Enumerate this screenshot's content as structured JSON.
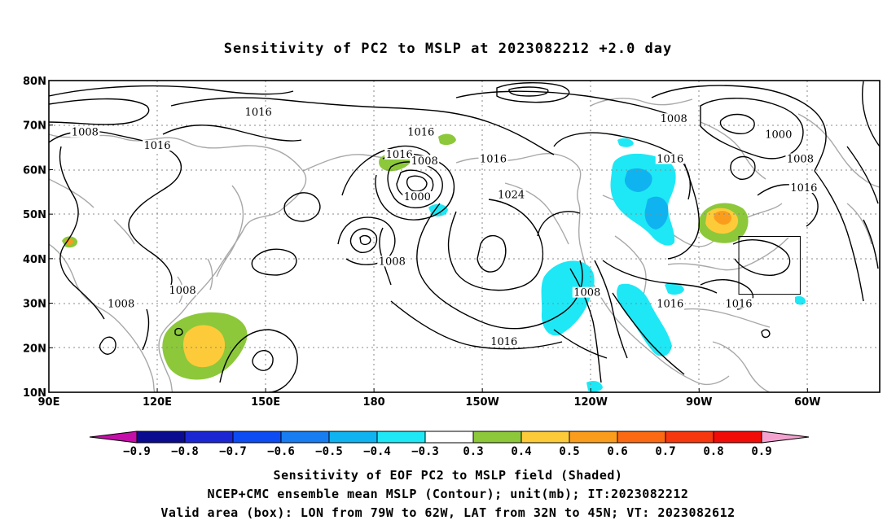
{
  "title": "Sensitivity of PC2 to MSLP at 2023082212 +2.0 day",
  "map": {
    "lon_labels": [
      "90E",
      "120E",
      "150E",
      "180",
      "150W",
      "120W",
      "90W",
      "60W"
    ],
    "lat_labels": [
      "80N",
      "70N",
      "60N",
      "50N",
      "40N",
      "30N",
      "20N",
      "10N"
    ],
    "contour_labels": [
      {
        "text": "1016",
        "lon": 148,
        "lat": 72.5
      },
      {
        "text": "1016",
        "lon": -167,
        "lat": 68
      },
      {
        "text": "1008",
        "lon": 100,
        "lat": 68
      },
      {
        "text": "1016",
        "lon": 120,
        "lat": 65
      },
      {
        "text": "1016",
        "lon": -173,
        "lat": 63
      },
      {
        "text": "1008",
        "lon": -166,
        "lat": 61.5
      },
      {
        "text": "1016",
        "lon": -147,
        "lat": 62
      },
      {
        "text": "1000",
        "lon": -168,
        "lat": 53.5
      },
      {
        "text": "1024",
        "lon": -142,
        "lat": 54
      },
      {
        "text": "1008",
        "lon": -175,
        "lat": 39
      },
      {
        "text": "1008",
        "lon": -97,
        "lat": 71
      },
      {
        "text": "1000",
        "lon": -68,
        "lat": 67.5
      },
      {
        "text": "1016",
        "lon": -98,
        "lat": 62
      },
      {
        "text": "1008",
        "lon": -62,
        "lat": 62
      },
      {
        "text": "1016",
        "lon": -61,
        "lat": 55.5
      },
      {
        "text": "1008",
        "lon": -121,
        "lat": 32
      },
      {
        "text": "1016",
        "lon": -98,
        "lat": 29.5
      },
      {
        "text": "1016",
        "lon": -79,
        "lat": 29.5
      },
      {
        "text": "1016",
        "lon": -144,
        "lat": 21
      },
      {
        "text": "1008",
        "lon": 127,
        "lat": 32.5
      },
      {
        "text": "1008",
        "lon": 110,
        "lat": 29.5
      }
    ],
    "valid_box": {
      "lon_west": -79,
      "lon_east": -62,
      "lat_south": 32,
      "lat_north": 45
    }
  },
  "colorbar": {
    "labels": [
      "−0.9",
      "−0.8",
      "−0.7",
      "−0.6",
      "−0.5",
      "−0.4",
      "−0.3",
      "0.3",
      "0.4",
      "0.5",
      "0.6",
      "0.7",
      "0.8",
      "0.9"
    ],
    "colors": [
      "#0b0b8f",
      "#1c27d4",
      "#0d4cf2",
      "#177df0",
      "#0fb3f0",
      "#1ee8f5",
      "#ffffff",
      "#8cc83a",
      "#fdcb3a",
      "#fb9d1c",
      "#fb6a12",
      "#f7370e",
      "#f20c08"
    ],
    "low_arrow_color": "#c40fa8",
    "high_arrow_color": "#f4a3d0"
  },
  "captions": [
    "Sensitivity of EOF PC2 to MSLP field (Shaded)",
    "NCEP+CMC ensemble mean MSLP (Contour); unit(mb); IT:2023082212",
    "Valid area (box): LON from 79W to 62W, LAT from 32N to 45N; VT: 2023082612"
  ]
}
